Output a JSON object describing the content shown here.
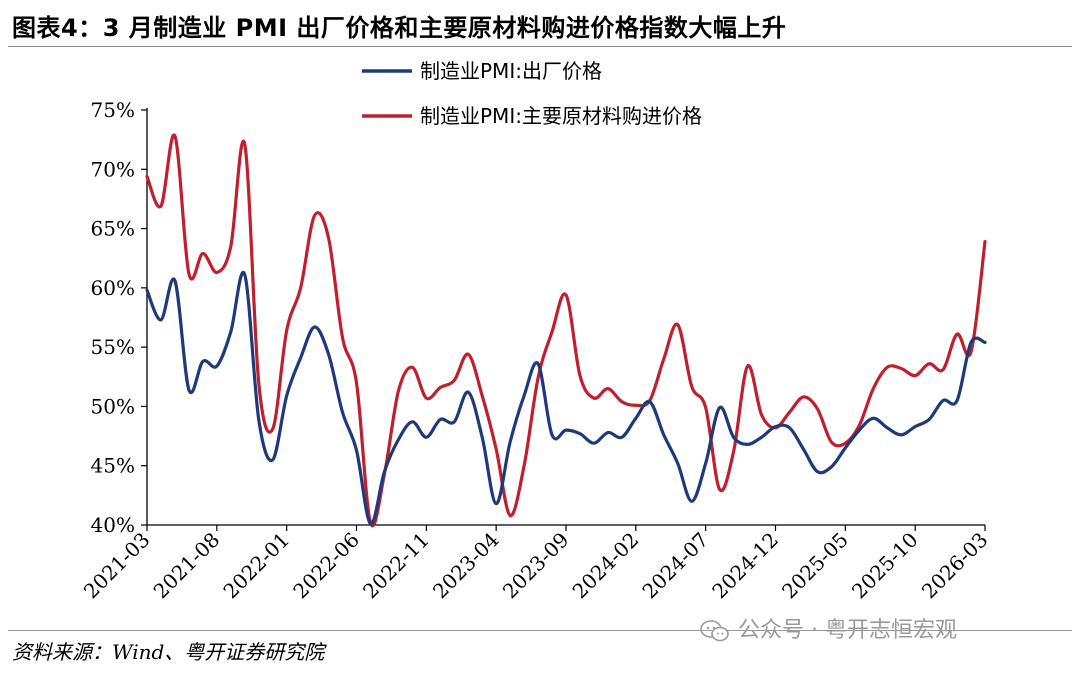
{
  "header": {
    "title": "图表4：3 月制造业 PMI 出厂价格和主要原材料购进价格指数大幅上升"
  },
  "footer": {
    "source": "资料来源：Wind、粤开证券研究院",
    "watermark": "公众号 · 粤开志恒宏观"
  },
  "chart_data": {
    "type": "line",
    "title": "3 月制造业 PMI 出厂价格和主要原材料购进价格指数大幅上升",
    "xlabel": "",
    "ylabel": "",
    "ylim": [
      40,
      75
    ],
    "yticks": [
      "40%",
      "45%",
      "50%",
      "55%",
      "60%",
      "65%",
      "70%",
      "75%"
    ],
    "ytick_values": [
      40,
      45,
      50,
      55,
      60,
      65,
      70,
      75
    ],
    "xticks": [
      "2021-03",
      "2021-08",
      "2022-01",
      "2022-06",
      "2022-11",
      "2023-04",
      "2023-09",
      "2024-02",
      "2024-07",
      "2024-12",
      "2025-05",
      "2025-10",
      "2026-03"
    ],
    "grid": false,
    "legend_position": "top-center",
    "x": [
      "2021-03",
      "2021-04",
      "2021-05",
      "2021-06",
      "2021-07",
      "2021-08",
      "2021-09",
      "2021-10",
      "2021-11",
      "2021-12",
      "2022-01",
      "2022-02",
      "2022-03",
      "2022-04",
      "2022-05",
      "2022-06",
      "2022-07",
      "2022-08",
      "2022-09",
      "2022-10",
      "2022-11",
      "2022-12",
      "2023-01",
      "2023-02",
      "2023-03",
      "2023-04",
      "2023-05",
      "2023-06",
      "2023-07",
      "2023-08",
      "2023-09",
      "2023-10",
      "2023-11",
      "2023-12",
      "2024-01",
      "2024-02",
      "2024-03",
      "2024-04",
      "2024-05",
      "2024-06",
      "2024-07",
      "2024-08",
      "2024-09",
      "2024-10",
      "2024-11",
      "2024-12",
      "2025-01",
      "2025-02",
      "2025-03",
      "2025-04",
      "2025-05",
      "2025-06",
      "2025-07",
      "2025-08",
      "2025-09",
      "2025-10",
      "2025-11",
      "2025-12",
      "2026-01",
      "2026-02",
      "2026-03"
    ],
    "series": [
      {
        "name": "制造业PMI:出厂价格",
        "color": "#1f3a7a",
        "values": [
          59.8,
          57.3,
          60.6,
          51.4,
          53.8,
          53.4,
          56.3,
          61.1,
          48.9,
          45.5,
          50.9,
          54.1,
          56.7,
          54.4,
          49.5,
          46.3,
          40.1,
          44.5,
          47.2,
          48.7,
          47.4,
          48.9,
          48.7,
          51.2,
          47.4,
          41.8,
          47.0,
          50.9,
          53.6,
          47.6,
          48.0,
          47.7,
          46.9,
          47.8,
          47.4,
          49.0,
          50.4,
          47.6,
          45.2,
          42.0,
          45.2,
          49.9,
          47.4,
          46.8,
          47.4,
          48.3,
          48.2,
          46.4,
          44.5,
          44.9,
          46.5,
          48.0,
          49.0,
          48.2,
          47.6,
          48.3,
          48.9,
          50.5,
          50.5,
          55.4,
          55.4
        ],
        "values_note": "series aligned to x; last value shown twice for end point"
      },
      {
        "name": "制造业PMI:主要原材料购进价格",
        "color": "#c0202e",
        "values": [
          69.4,
          66.9,
          72.8,
          61.2,
          62.9,
          61.3,
          63.5,
          72.1,
          52.0,
          48.1,
          56.4,
          60.0,
          66.1,
          64.2,
          55.8,
          52.0,
          40.2,
          44.3,
          51.3,
          53.3,
          50.7,
          51.6,
          52.2,
          54.4,
          50.9,
          46.4,
          40.8,
          45.0,
          52.4,
          56.3,
          59.4,
          52.6,
          50.7,
          51.5,
          50.4,
          50.1,
          50.5,
          54.0,
          56.9,
          51.7,
          49.9,
          43.0,
          46.2,
          53.4,
          49.3,
          48.2,
          49.5,
          50.8,
          49.8,
          47.0,
          46.9,
          48.4,
          51.5,
          53.3,
          53.2,
          52.6,
          53.6,
          53.1,
          56.1,
          54.6,
          63.9
        ]
      }
    ]
  }
}
